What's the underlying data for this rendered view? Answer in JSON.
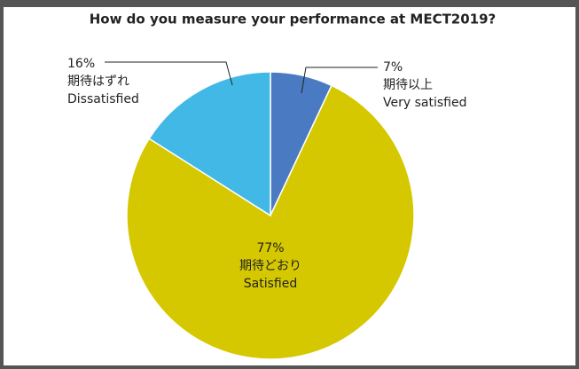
{
  "chart_data": {
    "type": "pie",
    "title": "How do you measure your performance at MECT2019?",
    "categories": [
      "Very satisfied",
      "Satisfied",
      "Dissatisfied"
    ],
    "categories_jp": [
      "期待以上",
      "期待どおり",
      "期待はずれ"
    ],
    "values": [
      7,
      77,
      16
    ],
    "value_labels": [
      "7%",
      "77%",
      "16%"
    ],
    "colors": [
      "#4a7bc2",
      "#d5c800",
      "#42b8e6"
    ]
  }
}
